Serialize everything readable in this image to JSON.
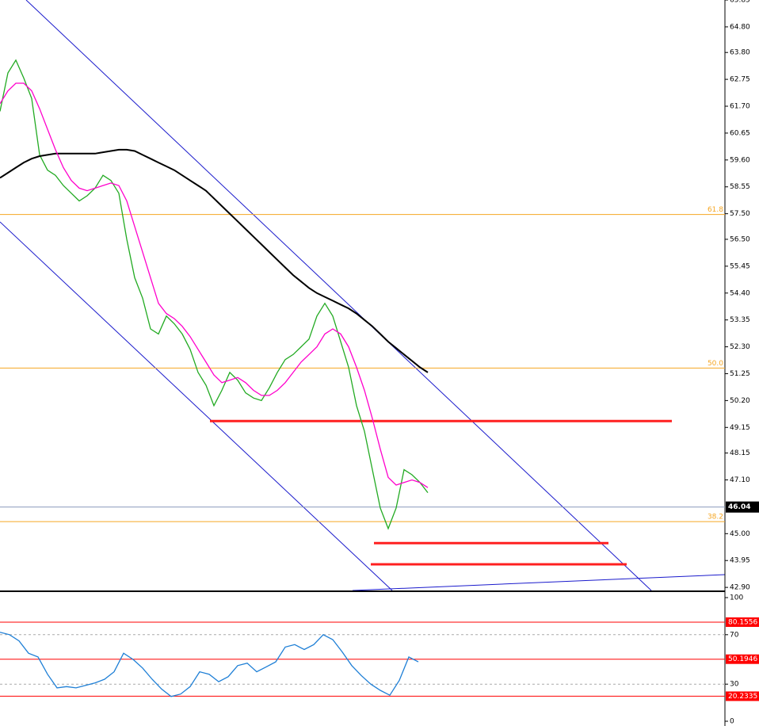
{
  "chart_data": [
    {
      "type": "line",
      "x": [
        0,
        1,
        2,
        3,
        4,
        5,
        6,
        7,
        8,
        9,
        10,
        11,
        12,
        13,
        14,
        15,
        16,
        17,
        18,
        19,
        20,
        21,
        22,
        23,
        24,
        25,
        26,
        27,
        28,
        29,
        30,
        31,
        32,
        33,
        34,
        35,
        36,
        37,
        38,
        39,
        40,
        41,
        42,
        43,
        44,
        45,
        46,
        47,
        48,
        49,
        50,
        51,
        52,
        53,
        54
      ],
      "xlim": [
        0,
        91.5
      ],
      "ylim": [
        42.78,
        65.85
      ],
      "yticks": [
        {
          "value": 65.85,
          "label": "65.85"
        },
        {
          "value": 64.8,
          "label": "64.80"
        },
        {
          "value": 63.8,
          "label": "63.80"
        },
        62.75,
        {
          "value": 61.7,
          "label": "61.70"
        },
        60.65,
        {
          "value": 59.6,
          "label": "59.60"
        },
        58.55,
        {
          "value": 57.5,
          "label": "57.50"
        },
        {
          "value": 56.5,
          "label": "56.50"
        },
        55.45,
        {
          "value": 54.4,
          "label": "54.40"
        },
        53.35,
        {
          "value": 52.3,
          "label": "52.30"
        },
        51.25,
        {
          "value": 50.2,
          "label": "50.20"
        },
        49.15,
        48.15,
        {
          "value": 47.1,
          "label": "47.10"
        },
        {
          "value": 45.0,
          "label": "45.00"
        },
        43.95,
        {
          "value": 42.9,
          "label": "42.90"
        }
      ],
      "series": [
        {
          "color": "#22aa22",
          "values": [
            61.5,
            63,
            63.5,
            62.8,
            62,
            59.8,
            59.2,
            59,
            58.6,
            58.3,
            58,
            58.2,
            58.5,
            59,
            58.8,
            58.3,
            56.5,
            55,
            54.2,
            53,
            52.8,
            53.5,
            53.2,
            52.8,
            52.2,
            51.3,
            50.8,
            50,
            50.6,
            51.3,
            51,
            50.5,
            50.3,
            50.2,
            50.7,
            51.3,
            51.8,
            52,
            52.3,
            52.6,
            53.5,
            54,
            53.5,
            52.5,
            51.5,
            50,
            49,
            47.5,
            46,
            45.2,
            46,
            47.5,
            47.3,
            47,
            46.6
          ]
        },
        {
          "color": "#000000",
          "values": [
            58.9,
            59.1,
            59.3,
            59.5,
            59.65,
            59.75,
            59.8,
            59.85,
            59.85,
            59.85,
            59.85,
            59.85,
            59.85,
            59.9,
            59.95,
            60.0,
            60.0,
            59.95,
            59.8,
            59.65,
            59.5,
            59.35,
            59.2,
            59.0,
            58.8,
            58.6,
            58.4,
            58.1,
            57.8,
            57.5,
            57.2,
            56.9,
            56.6,
            56.3,
            56.0,
            55.7,
            55.4,
            55.1,
            54.85,
            54.6,
            54.4,
            54.25,
            54.1,
            53.95,
            53.8,
            53.6,
            53.35,
            53.1,
            52.8,
            52.5,
            52.25,
            52.0,
            51.75,
            51.5,
            51.3
          ]
        },
        {
          "color": "#ff00cc",
          "values": [
            61.8,
            62.3,
            62.6,
            62.6,
            62.3,
            61.6,
            60.8,
            60.0,
            59.3,
            58.8,
            58.5,
            58.4,
            58.5,
            58.6,
            58.7,
            58.6,
            58.0,
            57.0,
            56.0,
            55.0,
            54.0,
            53.6,
            53.4,
            53.1,
            52.7,
            52.2,
            51.7,
            51.2,
            50.9,
            51.0,
            51.1,
            50.9,
            50.6,
            50.4,
            50.4,
            50.6,
            50.9,
            51.3,
            51.7,
            52.0,
            52.3,
            52.8,
            53.0,
            52.8,
            52.3,
            51.5,
            50.6,
            49.5,
            48.3,
            47.2,
            46.9,
            47.0,
            47.1,
            47.0,
            46.8
          ]
        }
      ],
      "fib_levels": [
        {
          "label": "61.8",
          "value": 57.47
        },
        {
          "label": "50.0",
          "value": 51.47
        },
        {
          "label": "38.2",
          "value": 45.47
        }
      ],
      "fib_color": "#f5a623",
      "support_levels": [
        49.4,
        44.63,
        43.8
      ],
      "support_color": "#ff2020",
      "current_price": {
        "value": 46.04,
        "label": "46.04"
      }
    },
    {
      "type": "line",
      "x": [
        0,
        1,
        2,
        3,
        4,
        5,
        6,
        7,
        8,
        9,
        10,
        11,
        12,
        13,
        14,
        15,
        16,
        17,
        18,
        19,
        20,
        21,
        22,
        23,
        24,
        25,
        26,
        27,
        28,
        29,
        30,
        31,
        32,
        33,
        34,
        35,
        36,
        37,
        38,
        39,
        40,
        41,
        42,
        43,
        44
      ],
      "xlim": [
        0,
        76.25
      ],
      "ylim": [
        -3.85,
        103.85
      ],
      "yticks": [
        100,
        70,
        30,
        0
      ],
      "dotted_ticks": [
        70,
        30
      ],
      "series": [
        {
          "color": "#1e7fd6",
          "values": [
            72,
            70,
            65,
            55,
            52,
            38,
            27,
            28,
            27,
            29,
            31,
            34,
            40,
            55,
            50,
            43,
            34,
            26,
            20,
            22,
            28,
            40,
            38,
            32,
            36,
            45,
            47,
            40,
            44,
            48,
            60,
            62,
            58,
            62,
            70,
            66,
            56,
            45,
            37,
            30,
            25,
            21,
            33,
            52,
            48
          ]
        }
      ],
      "levels": [
        80.1556,
        50.1946,
        20.2335
      ],
      "level_color": "#ff0000"
    }
  ]
}
